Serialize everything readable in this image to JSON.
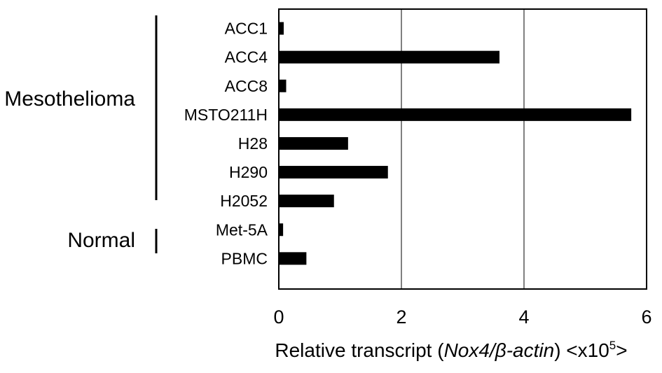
{
  "chart_data": {
    "type": "bar",
    "orientation": "horizontal",
    "categories": [
      "ACC1",
      "ACC4",
      "ACC8",
      "MSTO211H",
      "H28",
      "H290",
      "H2052",
      "Met-5A",
      "PBMC"
    ],
    "values": [
      0.08,
      3.6,
      0.12,
      5.75,
      1.13,
      1.78,
      0.9,
      0.07,
      0.45
    ],
    "groups": [
      {
        "name": "Mesothelioma",
        "categories": [
          "ACC1",
          "ACC4",
          "ACC8",
          "MSTO211H",
          "H28",
          "H290",
          "H2052"
        ]
      },
      {
        "name": "Normal",
        "categories": [
          "Met-5A",
          "PBMC"
        ]
      }
    ],
    "xlabel": {
      "prefix": "Relative transcript (",
      "gene": "Nox4",
      "slash": "/",
      "beta": "β",
      "ref": "-actin",
      "suffix": ") <x10",
      "exponent": "5",
      "close": ">"
    },
    "ylabel": "",
    "xlim": [
      0,
      6
    ],
    "xticks": [
      "0",
      "2",
      "4",
      "6"
    ],
    "grid": "vertical lines at x ticks",
    "bar_color": "#000000"
  }
}
